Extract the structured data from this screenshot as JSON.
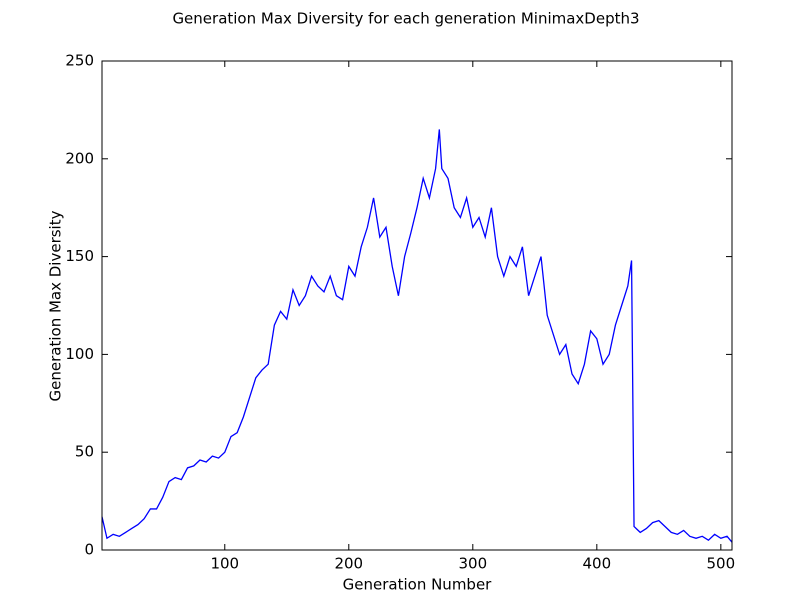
{
  "chart_data": {
    "type": "line",
    "title": "Generation Max Diversity for each generation MinimaxDepth3",
    "x_label": "Generation Number",
    "y_label": "Generation Max Diversity",
    "x": [
      1,
      5,
      10,
      15,
      20,
      25,
      30,
      35,
      40,
      45,
      50,
      55,
      60,
      65,
      70,
      75,
      80,
      85,
      90,
      95,
      100,
      105,
      110,
      115,
      120,
      125,
      130,
      135,
      140,
      145,
      150,
      155,
      160,
      165,
      170,
      175,
      180,
      185,
      190,
      195,
      200,
      205,
      210,
      215,
      220,
      225,
      230,
      235,
      240,
      245,
      250,
      255,
      260,
      265,
      270,
      273,
      275,
      280,
      285,
      290,
      295,
      300,
      305,
      310,
      315,
      320,
      325,
      330,
      335,
      340,
      345,
      350,
      355,
      360,
      365,
      370,
      375,
      380,
      385,
      390,
      395,
      400,
      405,
      410,
      415,
      420,
      425,
      428,
      430,
      435,
      440,
      445,
      450,
      455,
      460,
      465,
      470,
      475,
      480,
      485,
      490,
      495,
      500,
      505,
      509
    ],
    "series": [
      {
        "name": "Generation Max Diversity",
        "color": "#0000ff",
        "values": [
          17,
          6,
          8,
          7,
          9,
          11,
          13,
          16,
          21,
          21,
          27,
          35,
          37,
          36,
          42,
          43,
          46,
          45,
          48,
          47,
          50,
          58,
          60,
          68,
          78,
          88,
          92,
          95,
          115,
          122,
          118,
          133,
          125,
          130,
          140,
          135,
          132,
          140,
          130,
          128,
          145,
          140,
          155,
          165,
          180,
          160,
          165,
          145,
          130,
          150,
          162,
          175,
          190,
          180,
          195,
          215,
          195,
          190,
          175,
          170,
          180,
          165,
          170,
          160,
          175,
          150,
          140,
          150,
          145,
          155,
          130,
          140,
          150,
          120,
          110,
          100,
          105,
          90,
          85,
          95,
          112,
          108,
          95,
          100,
          115,
          125,
          135,
          148,
          12,
          9,
          11,
          14,
          15,
          12,
          9,
          8,
          10,
          7,
          6,
          7,
          5,
          8,
          6,
          7,
          4
        ]
      }
    ],
    "xlim": [
      1,
      509
    ],
    "ylim": [
      0,
      250
    ],
    "xticks": [
      100,
      200,
      300,
      400,
      500
    ],
    "yticks": [
      0,
      50,
      100,
      150,
      200,
      250
    ]
  }
}
